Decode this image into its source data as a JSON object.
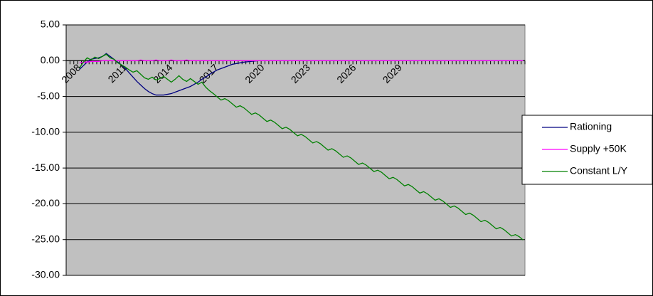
{
  "chart_data": {
    "type": "line",
    "categories": [
      null,
      null,
      null,
      "2008",
      null,
      null,
      null,
      null,
      null,
      null,
      null,
      null,
      null,
      null,
      null,
      "2011",
      null,
      null,
      null,
      null,
      null,
      null,
      null,
      null,
      null,
      null,
      null,
      "2014",
      null,
      null,
      null,
      null,
      null,
      null,
      null,
      null,
      null,
      null,
      null,
      "2017",
      null,
      null,
      null,
      null,
      null,
      null,
      null,
      null,
      null,
      null,
      null,
      "2020",
      null,
      null,
      null,
      null,
      null,
      null,
      null,
      null,
      null,
      null,
      null,
      "2023",
      null,
      null,
      null,
      null,
      null,
      null,
      null,
      null,
      null,
      null,
      null,
      "2026",
      null,
      null,
      null,
      null,
      null,
      null,
      null,
      null,
      null,
      null,
      null,
      "2029",
      null,
      null,
      null,
      null,
      null,
      null,
      null,
      null,
      null,
      null,
      null,
      null,
      null,
      null,
      null,
      null,
      null,
      null,
      null,
      null,
      null,
      null,
      null,
      null,
      null,
      null,
      null,
      null,
      null,
      null,
      null,
      null
    ],
    "series": [
      {
        "name": "Rationing",
        "color": "#000080",
        "values": [
          null,
          null,
          null,
          -1.2,
          -0.7,
          -0.2,
          0.2,
          0.3,
          0.4,
          0.6,
          1.0,
          0.6,
          0.2,
          -0.2,
          -0.6,
          -1.1,
          -1.7,
          -2.3,
          -2.9,
          -3.4,
          -3.9,
          -4.3,
          -4.6,
          -4.8,
          -4.8,
          -4.8,
          -4.7,
          -4.6,
          -4.4,
          -4.2,
          -4.0,
          -3.8,
          -3.6,
          -3.3,
          -3.0,
          -2.6,
          -2.3,
          -1.9,
          -1.6,
          -1.3,
          -1.1,
          -0.9,
          -0.7,
          -0.5,
          -0.4,
          -0.3,
          -0.2,
          -0.15,
          -0.1,
          -0.05,
          0,
          0,
          0,
          0,
          0,
          0,
          0,
          0,
          0,
          0,
          0,
          0,
          0,
          0,
          0,
          0,
          0,
          0,
          0,
          0,
          0,
          0,
          0,
          0,
          0,
          0,
          0,
          0,
          0,
          0,
          0,
          0,
          0,
          0,
          0,
          0,
          0,
          0,
          0,
          0,
          0,
          0,
          0,
          0,
          0,
          0,
          0,
          0,
          0,
          0,
          0,
          0,
          0,
          0,
          0,
          0,
          0,
          0,
          0,
          0,
          0,
          0,
          0,
          0,
          0,
          0,
          0,
          0,
          0,
          0
        ]
      },
      {
        "name": "Supply +50K",
        "color": "#ff00ff",
        "values": [
          null,
          null,
          null,
          -0.3,
          -0.2,
          -0.2,
          -0.1,
          -0.1,
          -0.1,
          0,
          0,
          0,
          0,
          0,
          0,
          0,
          0,
          0,
          0,
          0.1,
          0,
          0,
          0,
          0.1,
          0,
          0,
          0,
          0.1,
          0,
          0,
          0,
          0.1,
          0,
          0,
          0,
          0,
          0,
          0,
          0,
          0,
          0,
          0,
          0,
          0,
          0,
          0,
          0,
          0,
          0,
          0,
          0,
          0,
          0,
          0,
          0,
          0,
          0,
          0,
          0,
          0,
          0,
          0,
          0,
          0,
          0,
          0,
          0,
          0,
          0,
          0,
          0,
          0,
          0,
          0,
          0,
          0,
          0,
          0,
          0,
          0,
          0,
          0,
          0,
          0,
          0,
          0,
          0,
          0,
          0,
          0,
          0,
          0,
          0,
          0,
          0,
          0,
          0,
          0,
          0,
          0,
          0,
          0,
          0,
          0,
          0,
          0,
          0,
          0,
          0,
          0,
          0,
          0,
          0,
          0,
          0,
          0,
          0,
          0,
          0,
          0
        ]
      },
      {
        "name": "Constant L/Y",
        "color": "#008000",
        "values": [
          null,
          null,
          null,
          -1.0,
          -0.2,
          0.4,
          0.1,
          0.5,
          0.3,
          0.6,
          0.9,
          0.4,
          0.2,
          -0.3,
          -0.6,
          -0.9,
          -1.3,
          -1.6,
          -1.4,
          -1.9,
          -2.4,
          -2.6,
          -2.3,
          -2.7,
          -2.5,
          -2.2,
          -2.6,
          -3.0,
          -2.6,
          -2.1,
          -2.6,
          -2.9,
          -2.5,
          -2.9,
          -3.3,
          -3.0,
          -3.7,
          -4.2,
          -4.6,
          -5.05,
          -5.5,
          -5.3,
          -5.6,
          -6.05,
          -6.5,
          -6.3,
          -6.6,
          -7.05,
          -7.5,
          -7.3,
          -7.6,
          -8.05,
          -8.5,
          -8.3,
          -8.6,
          -9.05,
          -9.5,
          -9.3,
          -9.6,
          -10.05,
          -10.5,
          -10.3,
          -10.6,
          -11.05,
          -11.5,
          -11.3,
          -11.6,
          -12.05,
          -12.5,
          -12.3,
          -12.6,
          -13.05,
          -13.5,
          -13.3,
          -13.6,
          -14.05,
          -14.5,
          -14.3,
          -14.6,
          -15.05,
          -15.5,
          -15.3,
          -15.6,
          -16.05,
          -16.5,
          -16.3,
          -16.6,
          -17.05,
          -17.5,
          -17.3,
          -17.6,
          -18.05,
          -18.5,
          -18.3,
          -18.6,
          -19.05,
          -19.5,
          -19.3,
          -19.6,
          -20.05,
          -20.5,
          -20.3,
          -20.6,
          -21.05,
          -21.5,
          -21.3,
          -21.6,
          -22.05,
          -22.5,
          -22.3,
          -22.6,
          -23.05,
          -23.5,
          -23.3,
          -23.6,
          -24.05,
          -24.5,
          -24.3,
          -24.6,
          -25.05
        ]
      }
    ],
    "ylim": [
      -30,
      5
    ],
    "yticks": [
      {
        "value": 5,
        "label": "5.00"
      },
      {
        "value": 0,
        "label": "0.00"
      },
      {
        "value": -5,
        "label": "-5.00"
      },
      {
        "value": -10,
        "label": "-10.00"
      },
      {
        "value": -15,
        "label": "-15.00"
      },
      {
        "value": -20,
        "label": "-20.00"
      },
      {
        "value": -25,
        "label": "-25.00"
      },
      {
        "value": -30,
        "label": "-30.00"
      }
    ],
    "grid": true,
    "plot_background": "#c0c0c0",
    "legend": "right"
  }
}
